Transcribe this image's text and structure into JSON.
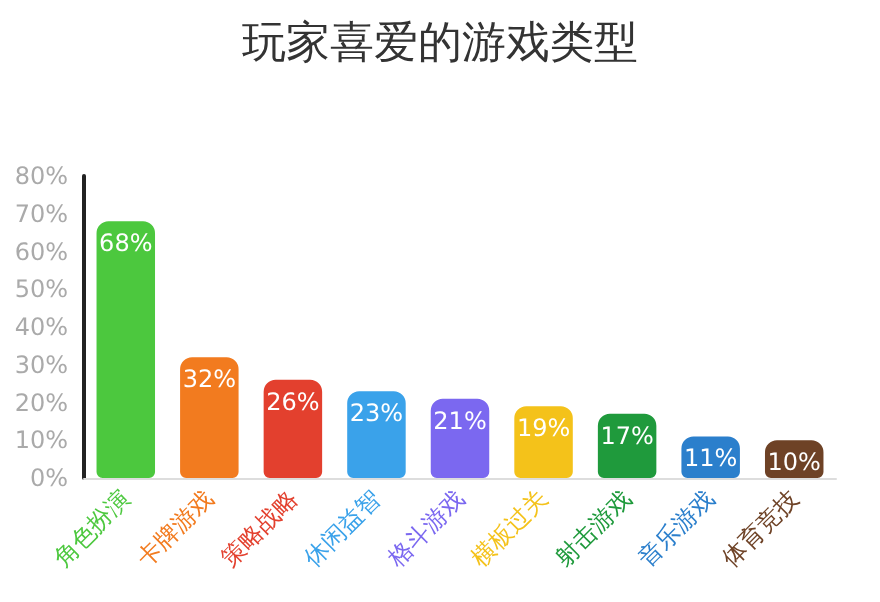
{
  "chart_data": {
    "type": "bar",
    "title": "玩家喜爱的游戏类型",
    "categories": [
      "角色扮演",
      "卡牌游戏",
      "策略战略",
      "休闲益智",
      "格斗游戏",
      "横板过关",
      "射击游戏",
      "音乐游戏",
      "体育竞技"
    ],
    "values": [
      68,
      32,
      26,
      23,
      21,
      19,
      17,
      11,
      10
    ],
    "colors": [
      "#4cc83e",
      "#f27b1f",
      "#e3402e",
      "#3aa2ea",
      "#7b68f0",
      "#f4c21a",
      "#1f9a3c",
      "#2b7fcc",
      "#6e4226"
    ],
    "value_labels": [
      "68%",
      "32%",
      "26%",
      "23%",
      "21%",
      "19%",
      "17%",
      "11%",
      "10%"
    ],
    "ylim": [
      0,
      80
    ],
    "yticks": [
      {
        "value": 0,
        "label": "0%"
      },
      {
        "value": 10,
        "label": "10%"
      },
      {
        "value": 20,
        "label": "20%"
      },
      {
        "value": 30,
        "label": "30%"
      },
      {
        "value": 40,
        "label": "40%"
      },
      {
        "value": 50,
        "label": "50%"
      },
      {
        "value": 60,
        "label": "60%"
      },
      {
        "value": 70,
        "label": "70%"
      },
      {
        "value": 80,
        "label": "80%"
      }
    ],
    "grid": false
  }
}
